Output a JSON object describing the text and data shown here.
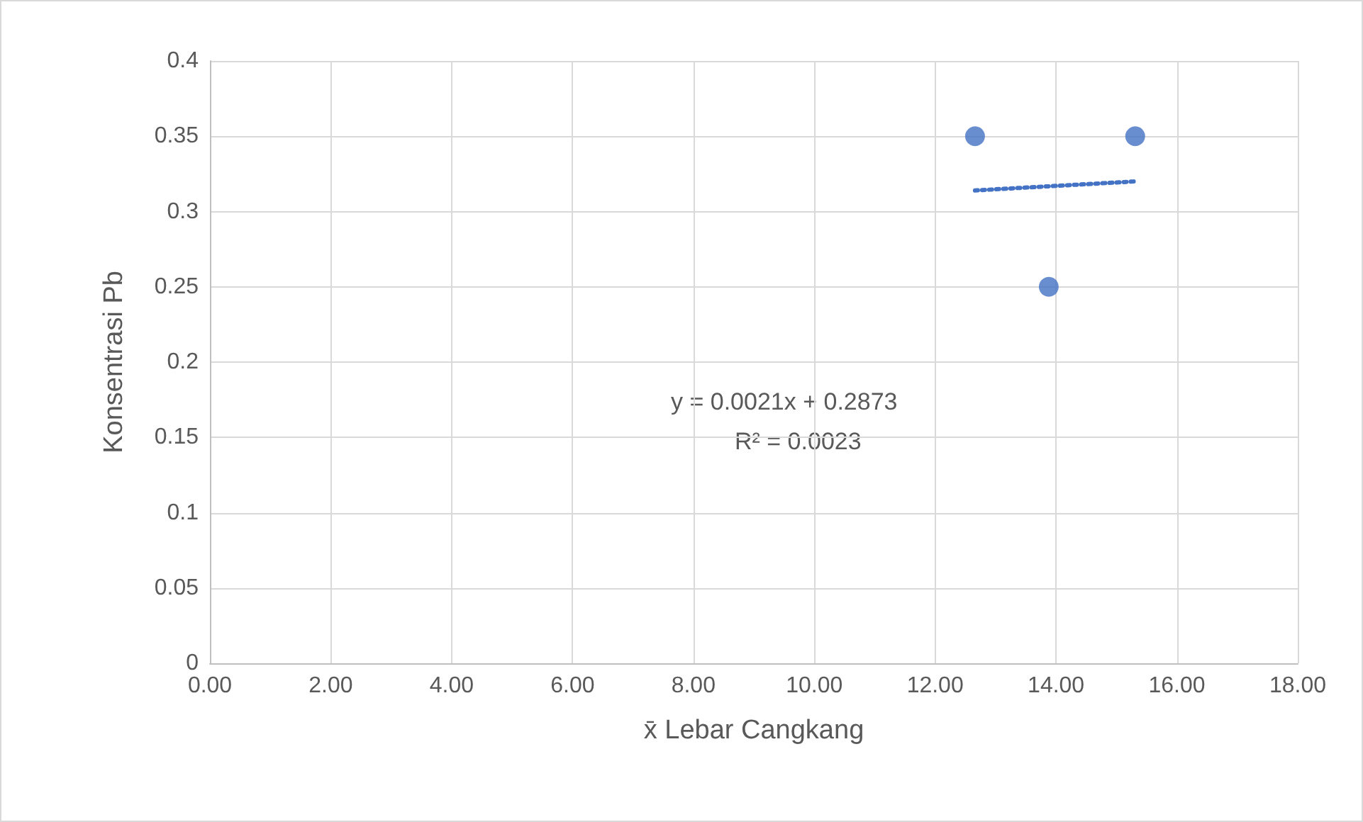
{
  "chart_data": {
    "type": "scatter",
    "xlabel": "x̄ Lebar Cangkang",
    "ylabel": "Konsentrasi Pb",
    "series": [
      {
        "color": "#4472c4",
        "x": [
          12.66,
          13.88,
          15.31
        ],
        "values": [
          0.35,
          0.25,
          0.35
        ],
        "marker": "circle"
      },
      {
        "type": "line",
        "color": "#4472c4",
        "x": [
          12.66,
          15.31
        ],
        "values": [
          0.314,
          0.32
        ],
        "marker": "none",
        "line_style": "dotted"
      }
    ],
    "annotations": [
      "y = 0.0021x + 0.2873",
      "R² = 0.0023"
    ],
    "xlim": [
      0,
      18
    ],
    "xticks": [
      {
        "value": 0,
        "label": "0.00"
      },
      {
        "value": 2,
        "label": "2.00"
      },
      {
        "value": 4,
        "label": "4.00"
      },
      {
        "value": 6,
        "label": "6.00"
      },
      {
        "value": 8,
        "label": "8.00"
      },
      {
        "value": 10,
        "label": "10.00"
      },
      {
        "value": 12,
        "label": "12.00"
      },
      {
        "value": 14,
        "label": "14.00"
      },
      {
        "value": 16,
        "label": "16.00"
      },
      {
        "value": 18,
        "label": "18.00"
      }
    ],
    "ylim": [
      0,
      0.4
    ],
    "yticks": [
      0,
      0.05,
      0.1,
      0.15,
      0.2,
      0.25,
      0.3,
      0.35,
      0.4
    ],
    "grid": true
  }
}
